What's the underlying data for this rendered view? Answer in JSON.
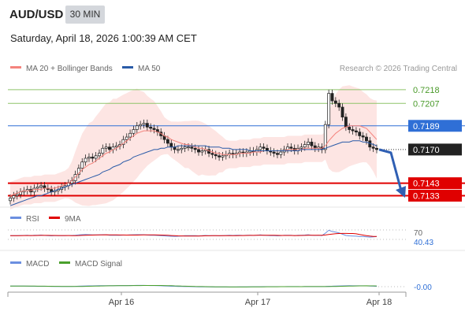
{
  "header": {
    "symbol": "AUD/USD",
    "timeframe": "30 MIN",
    "datetime": "Saturday, April 18, 2026 1:00:39 AM CET"
  },
  "legend": {
    "ma20_label": "MA 20 + Bollinger Bands",
    "ma50_label": "MA 50",
    "credit": "Research © 2026 Trading Central",
    "rsi_label": "RSI",
    "rsi_ma_label": "9MA",
    "macd_label": "MACD",
    "macd_signal_label": "MACD Signal"
  },
  "colors": {
    "ma20": "#f4837d",
    "ma50": "#2a5ba8",
    "bollinger_fill": "#fde0de",
    "resistance": "#8fc36a",
    "pivot": "#2f6fd6",
    "support": "#e00000",
    "last_price_bg": "#222222",
    "rsi": "#6b8fe0",
    "rsi_ma": "#e00000",
    "macd": "#6b8fe0",
    "macd_signal": "#4aa02c",
    "arrow": "#2f5fb3"
  },
  "chart_data": [
    {
      "type": "candlestick",
      "title": "AUD/USD",
      "x_tick_labels": [
        "Apr 16",
        "Apr 17",
        "Apr 18"
      ],
      "ylim": [
        0.7127,
        0.7228
      ],
      "price_levels": [
        {
          "name": "resistance-2",
          "value": "0.7218",
          "kind": "resistance"
        },
        {
          "name": "resistance-1",
          "value": "0.7207",
          "kind": "resistance"
        },
        {
          "name": "pivot",
          "value": "0.7189",
          "kind": "pivot"
        },
        {
          "name": "last-price",
          "value": "0.7170",
          "kind": "last"
        },
        {
          "name": "support-1",
          "value": "0.7143",
          "kind": "support"
        },
        {
          "name": "support-2",
          "value": "0.7133",
          "kind": "support"
        }
      ],
      "close": [
        0.7131,
        0.7133,
        0.7134,
        0.7136,
        0.7137,
        0.7138,
        0.7136,
        0.7139,
        0.714,
        0.7141,
        0.7139,
        0.7138,
        0.7136,
        0.7137,
        0.7138,
        0.714,
        0.7141,
        0.7143,
        0.7145,
        0.715,
        0.7155,
        0.716,
        0.7163,
        0.7164,
        0.7163,
        0.7165,
        0.7167,
        0.7171,
        0.7172,
        0.717,
        0.7172,
        0.7173,
        0.7174,
        0.7178,
        0.718,
        0.7183,
        0.7186,
        0.7189,
        0.719,
        0.7191,
        0.7188,
        0.7187,
        0.7186,
        0.7184,
        0.7181,
        0.7178,
        0.7175,
        0.7172,
        0.717,
        0.717,
        0.7171,
        0.7172,
        0.7172,
        0.7171,
        0.717,
        0.7168,
        0.7169,
        0.717,
        0.7167,
        0.7166,
        0.7165,
        0.7164,
        0.7165,
        0.7166,
        0.7167,
        0.7166,
        0.7167,
        0.7168,
        0.7167,
        0.7168,
        0.7169,
        0.7168,
        0.717,
        0.7172,
        0.7171,
        0.7169,
        0.7168,
        0.7167,
        0.7166,
        0.7168,
        0.717,
        0.7172,
        0.7171,
        0.7169,
        0.7171,
        0.7172,
        0.7174,
        0.7176,
        0.7173,
        0.7171,
        0.7172,
        0.717,
        0.719,
        0.7215,
        0.7209,
        0.7207,
        0.7204,
        0.7196,
        0.7188,
        0.7186,
        0.7185,
        0.7184,
        0.7181,
        0.718,
        0.7177,
        0.7172,
        0.7171,
        0.717
      ],
      "ma20": [
        0.7133,
        0.7134,
        0.7135,
        0.7136,
        0.7137,
        0.7137,
        0.7137,
        0.7138,
        0.7138,
        0.7138,
        0.7139,
        0.7139,
        0.7139,
        0.7139,
        0.714,
        0.7141,
        0.7142,
        0.7143,
        0.7145,
        0.7148,
        0.7151,
        0.7154,
        0.7156,
        0.7158,
        0.7159,
        0.7161,
        0.7163,
        0.7165,
        0.7167,
        0.7168,
        0.717,
        0.7171,
        0.7173,
        0.7175,
        0.7177,
        0.7179,
        0.7181,
        0.7183,
        0.7184,
        0.7185,
        0.7185,
        0.7185,
        0.7185,
        0.7184,
        0.7183,
        0.7181,
        0.718,
        0.7178,
        0.7177,
        0.7176,
        0.7175,
        0.7174,
        0.7174,
        0.7173,
        0.7172,
        0.7171,
        0.7171,
        0.717,
        0.7169,
        0.7168,
        0.7167,
        0.7167,
        0.7166,
        0.7166,
        0.7166,
        0.7166,
        0.7166,
        0.7167,
        0.7167,
        0.7167,
        0.7167,
        0.7168,
        0.7168,
        0.7168,
        0.7169,
        0.7169,
        0.7169,
        0.7169,
        0.7169,
        0.7169,
        0.7169,
        0.717,
        0.717,
        0.717,
        0.717,
        0.717,
        0.7171,
        0.7171,
        0.7171,
        0.7171,
        0.7171,
        0.7171,
        0.7173,
        0.7177,
        0.718,
        0.7183,
        0.7185,
        0.7187,
        0.7188,
        0.7189,
        0.7189,
        0.7189,
        0.7189,
        0.7188,
        0.7187,
        0.7184,
        0.7181,
        0.7178
      ],
      "ma50": [
        0.7125,
        0.7126,
        0.7127,
        0.7128,
        0.7129,
        0.713,
        0.7131,
        0.7132,
        0.7133,
        0.7133,
        0.7134,
        0.7135,
        0.7136,
        0.7137,
        0.7138,
        0.7139,
        0.714,
        0.7141,
        0.7142,
        0.7143,
        0.7144,
        0.7145,
        0.7146,
        0.7147,
        0.7148,
        0.7149,
        0.715,
        0.7152,
        0.7153,
        0.7154,
        0.7156,
        0.7157,
        0.7158,
        0.716,
        0.7161,
        0.7162,
        0.7164,
        0.7165,
        0.7166,
        0.7167,
        0.7168,
        0.7169,
        0.717,
        0.717,
        0.7171,
        0.7171,
        0.7172,
        0.7172,
        0.7172,
        0.7173,
        0.7173,
        0.7173,
        0.7173,
        0.7173,
        0.7173,
        0.7173,
        0.7173,
        0.7173,
        0.7172,
        0.7172,
        0.7172,
        0.7172,
        0.7171,
        0.7171,
        0.7171,
        0.717,
        0.717,
        0.717,
        0.717,
        0.717,
        0.7169,
        0.7169,
        0.7169,
        0.7169,
        0.7169,
        0.7169,
        0.7169,
        0.7169,
        0.7169,
        0.7169,
        0.7169,
        0.7169,
        0.7169,
        0.7169,
        0.7169,
        0.717,
        0.717,
        0.717,
        0.717,
        0.717,
        0.717,
        0.717,
        0.7171,
        0.7172,
        0.7173,
        0.7174,
        0.7175,
        0.7176,
        0.7176,
        0.7176,
        0.7177,
        0.7177,
        0.7177,
        0.7176,
        0.7176,
        0.7175,
        0.7174,
        0.7173
      ]
    },
    {
      "type": "line",
      "name": "RSI",
      "series": [
        {
          "name": "RSI"
        },
        {
          "name": "9MA"
        }
      ],
      "level_labels": [
        "70",
        "40.43"
      ],
      "ylim": [
        20,
        80
      ]
    },
    {
      "type": "line",
      "name": "MACD",
      "series": [
        {
          "name": "MACD"
        },
        {
          "name": "MACD Signal"
        }
      ],
      "value_label": "-0.00"
    }
  ]
}
